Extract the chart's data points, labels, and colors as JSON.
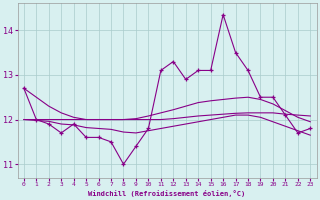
{
  "xlabel": "Windchill (Refroidissement éolien,°C)",
  "hours": [
    0,
    1,
    2,
    3,
    4,
    5,
    6,
    7,
    8,
    9,
    10,
    11,
    12,
    13,
    14,
    15,
    16,
    17,
    18,
    19,
    20,
    21,
    22,
    23
  ],
  "main_line": [
    12.7,
    12.0,
    11.9,
    11.7,
    11.9,
    11.6,
    11.6,
    11.5,
    11.0,
    11.4,
    11.8,
    13.1,
    13.3,
    12.9,
    13.1,
    13.1,
    14.35,
    13.5,
    13.1,
    12.5,
    12.5,
    12.1,
    11.7,
    11.8
  ],
  "smooth_line1": [
    12.0,
    11.98,
    11.96,
    11.9,
    11.88,
    11.82,
    11.8,
    11.78,
    11.72,
    11.7,
    11.75,
    11.8,
    11.85,
    11.9,
    11.95,
    12.0,
    12.05,
    12.1,
    12.1,
    12.05,
    11.95,
    11.85,
    11.75,
    11.65
  ],
  "smooth_line2": [
    12.0,
    12.0,
    12.0,
    12.0,
    12.0,
    12.0,
    12.0,
    12.0,
    12.0,
    12.02,
    12.08,
    12.15,
    12.22,
    12.3,
    12.38,
    12.42,
    12.45,
    12.48,
    12.5,
    12.45,
    12.35,
    12.2,
    12.05,
    11.95
  ],
  "smooth_line3": [
    12.7,
    12.5,
    12.3,
    12.15,
    12.05,
    12.0,
    12.0,
    12.0,
    12.0,
    12.0,
    12.0,
    12.0,
    12.02,
    12.05,
    12.08,
    12.1,
    12.12,
    12.14,
    12.15,
    12.15,
    12.15,
    12.12,
    12.1,
    12.08
  ],
  "line_color": "#880088",
  "bg_color": "#d8f0f0",
  "grid_color": "#aacccc",
  "ylim": [
    10.7,
    14.6
  ],
  "yticks": [
    11,
    12,
    13,
    14
  ]
}
